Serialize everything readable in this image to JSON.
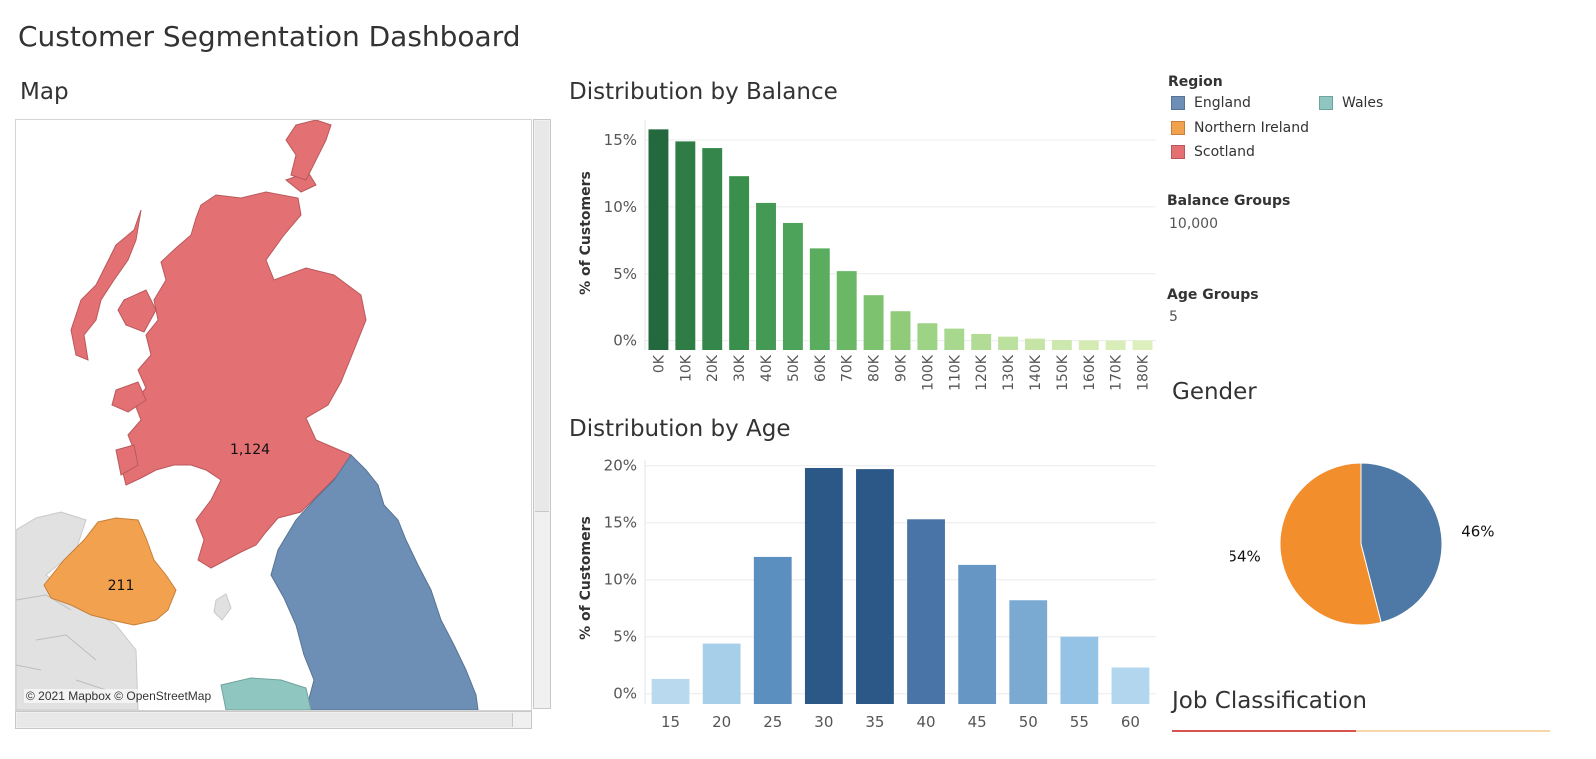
{
  "dashboard_title": "Customer Segmentation Dashboard",
  "map": {
    "title": "Map",
    "attribution": "© 2021 Mapbox © OpenStreetMap",
    "labels": [
      {
        "region": "Scotland",
        "value": "1,124"
      },
      {
        "region": "Northern Ireland",
        "value": "211"
      }
    ]
  },
  "legend": {
    "title": "Region",
    "items": [
      {
        "label": "England",
        "color": "#6e8fb5"
      },
      {
        "label": "Wales",
        "color": "#8fc7c0"
      },
      {
        "label": "Northern Ireland",
        "color": "#f2a14e"
      },
      {
        "label": "Scotland",
        "color": "#e37073"
      }
    ]
  },
  "parameters": {
    "balance_title": "Balance Groups",
    "balance_value": "10,000",
    "age_title": "Age Groups",
    "age_value": "5"
  },
  "chart_data": [
    {
      "type": "bar",
      "title": "Distribution by Balance",
      "ylabel": "% of Customers",
      "xlabel": "",
      "categories": [
        "0K",
        "10K",
        "20K",
        "30K",
        "40K",
        "50K",
        "60K",
        "70K",
        "80K",
        "90K",
        "100K",
        "110K",
        "120K",
        "130K",
        "140K",
        "150K",
        "160K",
        "170K",
        "180K"
      ],
      "values": [
        15.8,
        14.9,
        14.4,
        12.3,
        10.3,
        8.8,
        6.9,
        5.2,
        3.4,
        2.2,
        1.3,
        0.9,
        0.5,
        0.3,
        0.15,
        0.05,
        0.02,
        0.01,
        0.01
      ],
      "ylim": [
        -0.7,
        16.5
      ],
      "yticks": [
        0,
        5,
        10,
        15
      ],
      "ytick_labels": [
        "0%",
        "5%",
        "10%",
        "15%"
      ],
      "colors": [
        "#24693d",
        "#2f7d44",
        "#35864a",
        "#3b8f4d",
        "#449955",
        "#4ea35a",
        "#5aad5f",
        "#6ab866",
        "#7dc36f",
        "#8fcb79",
        "#9dd385",
        "#a8d88e",
        "#b2dc96",
        "#bce09e",
        "#c5e4a6",
        "#cde8ae",
        "#d4ebb4",
        "#d9edb9",
        "#dcefbc"
      ]
    },
    {
      "type": "bar",
      "title": "Distribution by Age",
      "ylabel": "% of Customers",
      "xlabel": "",
      "categories": [
        "15",
        "20",
        "25",
        "30",
        "35",
        "40",
        "45",
        "50",
        "55",
        "60"
      ],
      "values": [
        1.3,
        4.4,
        12.0,
        19.8,
        19.7,
        15.3,
        11.3,
        8.2,
        5.0,
        2.3
      ],
      "ylim": [
        -0.9,
        20.5
      ],
      "yticks": [
        0,
        5,
        10,
        15,
        20
      ],
      "ytick_labels": [
        "0%",
        "5%",
        "10%",
        "15%",
        "20%"
      ],
      "colors": [
        "#b8d9ee",
        "#a7cfe9",
        "#5b8fbf",
        "#2c5887",
        "#2c5887",
        "#4874a7",
        "#6697c4",
        "#7aaad2",
        "#94c3e5",
        "#b3d6ef"
      ]
    },
    {
      "type": "pie",
      "title": "Gender",
      "values": [
        46,
        54
      ],
      "labels": [
        "46%",
        "54%"
      ],
      "colors": [
        "#4e79a7",
        "#f28e2b"
      ]
    }
  ],
  "job_classification": {
    "title": "Job Classification"
  }
}
